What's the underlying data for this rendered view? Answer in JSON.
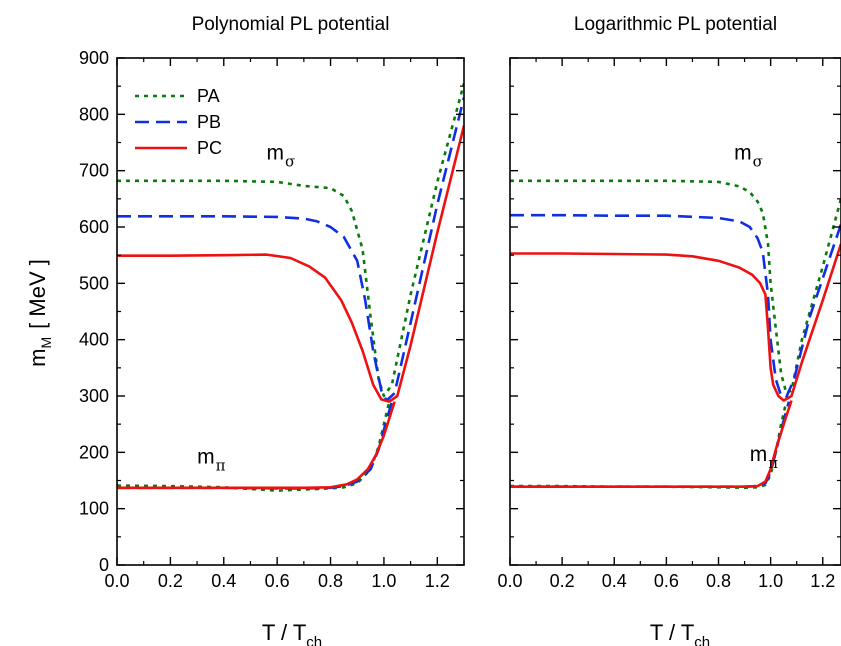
{
  "figure": {
    "ylabel_main": "m",
    "ylabel_sub": "M",
    "ylabel_unit": "[ MeV ]",
    "xlabel_main": "T / T",
    "xlabel_sub": "ch"
  },
  "legend_entries": [
    {
      "name": "PA",
      "color": "#0a7a0a",
      "dash": "4,5"
    },
    {
      "name": "PB",
      "color": "#1030e0",
      "dash": "14,7"
    },
    {
      "name": "PC",
      "color": "#ee1111",
      "dash": ""
    }
  ],
  "chart_data": [
    {
      "type": "line",
      "title": "Polynomial PL potential",
      "xlabel": "T / Tch",
      "ylabel": "mM [ MeV ]",
      "xlim": [
        0,
        1.3
      ],
      "ylim": [
        0,
        900
      ],
      "xticks": [
        "0.0",
        "0.2",
        "0.4",
        "0.6",
        "0.8",
        "1.0",
        "1.2"
      ],
      "yticks": [
        "0",
        "100",
        "200",
        "300",
        "400",
        "500",
        "600",
        "700",
        "800",
        "900"
      ],
      "legend": "top-left",
      "annotations": [
        {
          "text": "m",
          "sub": "σ",
          "x": 0.56,
          "y": 720
        },
        {
          "text": "m",
          "sub": "π",
          "x": 0.3,
          "y": 180
        }
      ],
      "series": [
        {
          "name": "PA",
          "sigma": [
            [
              0,
              682
            ],
            [
              0.2,
              682
            ],
            [
              0.4,
              682
            ],
            [
              0.6,
              680
            ],
            [
              0.7,
              673
            ],
            [
              0.8,
              669
            ],
            [
              0.85,
              655
            ],
            [
              0.88,
              628
            ],
            [
              0.92,
              560
            ],
            [
              0.95,
              440
            ],
            [
              0.98,
              330
            ],
            [
              1.0,
              300
            ],
            [
              1.03,
              320
            ],
            [
              1.1,
              480
            ],
            [
              1.2,
              680
            ],
            [
              1.3,
              855
            ]
          ],
          "pi": [
            [
              0,
              141
            ],
            [
              0.2,
              140
            ],
            [
              0.4,
              138
            ],
            [
              0.6,
              132
            ],
            [
              0.7,
              134
            ],
            [
              0.8,
              136
            ],
            [
              0.85,
              138
            ],
            [
              0.9,
              145
            ],
            [
              0.95,
              170
            ],
            [
              0.98,
              210
            ],
            [
              1.0,
              250
            ],
            [
              1.02,
              290
            ]
          ]
        },
        {
          "name": "PB",
          "sigma": [
            [
              0,
              619
            ],
            [
              0.2,
              619
            ],
            [
              0.4,
              619
            ],
            [
              0.6,
              618
            ],
            [
              0.7,
              615
            ],
            [
              0.75,
              610
            ],
            [
              0.8,
              600
            ],
            [
              0.85,
              582
            ],
            [
              0.9,
              540
            ],
            [
              0.93,
              470
            ],
            [
              0.96,
              380
            ],
            [
              0.99,
              310
            ],
            [
              1.01,
              292
            ],
            [
              1.04,
              305
            ],
            [
              1.1,
              430
            ],
            [
              1.2,
              640
            ],
            [
              1.3,
              830
            ]
          ],
          "pi": [
            [
              0,
              137
            ],
            [
              0.2,
              137
            ],
            [
              0.4,
              137
            ],
            [
              0.6,
              136
            ],
            [
              0.7,
              136
            ],
            [
              0.8,
              137
            ],
            [
              0.85,
              140
            ],
            [
              0.9,
              148
            ],
            [
              0.95,
              170
            ],
            [
              0.98,
              205
            ],
            [
              1.0,
              240
            ],
            [
              1.03,
              290
            ]
          ]
        },
        {
          "name": "PC",
          "sigma": [
            [
              0,
              549
            ],
            [
              0.2,
              549
            ],
            [
              0.4,
              550
            ],
            [
              0.56,
              551
            ],
            [
              0.65,
              545
            ],
            [
              0.72,
              530
            ],
            [
              0.78,
              510
            ],
            [
              0.84,
              470
            ],
            [
              0.88,
              430
            ],
            [
              0.92,
              380
            ],
            [
              0.96,
              320
            ],
            [
              0.99,
              294
            ],
            [
              1.02,
              290
            ],
            [
              1.05,
              300
            ],
            [
              1.1,
              390
            ],
            [
              1.2,
              590
            ],
            [
              1.3,
              780
            ]
          ],
          "pi": [
            [
              0,
              137
            ],
            [
              0.2,
              137
            ],
            [
              0.4,
              137
            ],
            [
              0.6,
              137
            ],
            [
              0.7,
              137
            ],
            [
              0.8,
              138
            ],
            [
              0.86,
              143
            ],
            [
              0.9,
              152
            ],
            [
              0.94,
              170
            ],
            [
              0.97,
              195
            ],
            [
              1.0,
              230
            ],
            [
              1.02,
              260
            ],
            [
              1.04,
              290
            ]
          ]
        }
      ]
    },
    {
      "type": "line",
      "title": "Logarithmic PL potential",
      "xlabel": "T / Tch",
      "ylabel": "mM [ MeV ]",
      "xlim": [
        0,
        1.27
      ],
      "ylim": [
        0,
        900
      ],
      "xticks": [
        "0.0",
        "0.2",
        "0.4",
        "0.6",
        "0.8",
        "1.0",
        "1.2"
      ],
      "yticks": [],
      "legend": "none",
      "annotations": [
        {
          "text": "m",
          "sub": "σ",
          "x": 0.86,
          "y": 720
        },
        {
          "text": "m",
          "sub": "π",
          "x": 0.92,
          "y": 185
        }
      ],
      "series": [
        {
          "name": "PA",
          "sigma": [
            [
              0,
              682
            ],
            [
              0.2,
              682
            ],
            [
              0.4,
              682
            ],
            [
              0.6,
              682
            ],
            [
              0.8,
              680
            ],
            [
              0.88,
              672
            ],
            [
              0.92,
              662
            ],
            [
              0.95,
              645
            ],
            [
              0.97,
              625
            ],
            [
              0.99,
              570
            ],
            [
              1.0,
              500
            ],
            [
              1.02,
              420
            ],
            [
              1.04,
              340
            ],
            [
              1.06,
              305
            ],
            [
              1.08,
              310
            ],
            [
              1.12,
              400
            ],
            [
              1.2,
              530
            ],
            [
              1.27,
              650
            ]
          ],
          "pi": [
            [
              0,
              140
            ],
            [
              0.2,
              140
            ],
            [
              0.4,
              139
            ],
            [
              0.6,
              139
            ],
            [
              0.8,
              138
            ],
            [
              0.9,
              137
            ],
            [
              0.95,
              138
            ],
            [
              0.98,
              142
            ],
            [
              1.0,
              160
            ],
            [
              1.02,
              200
            ],
            [
              1.04,
              250
            ],
            [
              1.06,
              290
            ]
          ]
        },
        {
          "name": "PB",
          "sigma": [
            [
              0,
              621
            ],
            [
              0.2,
              621
            ],
            [
              0.4,
              620
            ],
            [
              0.6,
              620
            ],
            [
              0.8,
              616
            ],
            [
              0.88,
              610
            ],
            [
              0.92,
              600
            ],
            [
              0.95,
              580
            ],
            [
              0.97,
              555
            ],
            [
              0.99,
              480
            ],
            [
              1.0,
              400
            ],
            [
              1.02,
              330
            ],
            [
              1.04,
              300
            ],
            [
              1.06,
              298
            ],
            [
              1.09,
              330
            ],
            [
              1.15,
              440
            ],
            [
              1.27,
              605
            ]
          ],
          "pi": [
            [
              0,
              139
            ],
            [
              0.2,
              139
            ],
            [
              0.4,
              139
            ],
            [
              0.6,
              139
            ],
            [
              0.8,
              139
            ],
            [
              0.9,
              139
            ],
            [
              0.95,
              140
            ],
            [
              0.98,
              145
            ],
            [
              1.0,
              165
            ],
            [
              1.02,
              200
            ],
            [
              1.04,
              240
            ],
            [
              1.07,
              290
            ]
          ]
        },
        {
          "name": "PC",
          "sigma": [
            [
              0,
              553
            ],
            [
              0.2,
              553
            ],
            [
              0.4,
              552
            ],
            [
              0.6,
              551
            ],
            [
              0.7,
              548
            ],
            [
              0.8,
              540
            ],
            [
              0.88,
              528
            ],
            [
              0.93,
              515
            ],
            [
              0.96,
              500
            ],
            [
              0.98,
              480
            ],
            [
              0.99,
              420
            ],
            [
              1.0,
              350
            ],
            [
              1.01,
              320
            ],
            [
              1.03,
              300
            ],
            [
              1.05,
              292
            ],
            [
              1.08,
              300
            ],
            [
              1.12,
              360
            ],
            [
              1.2,
              470
            ],
            [
              1.27,
              570
            ]
          ],
          "pi": [
            [
              0,
              139
            ],
            [
              0.2,
              139
            ],
            [
              0.4,
              139
            ],
            [
              0.6,
              139
            ],
            [
              0.8,
              139
            ],
            [
              0.9,
              139
            ],
            [
              0.95,
              140
            ],
            [
              0.98,
              148
            ],
            [
              1.0,
              170
            ],
            [
              1.02,
              205
            ],
            [
              1.05,
              250
            ],
            [
              1.08,
              292
            ]
          ]
        }
      ]
    }
  ]
}
